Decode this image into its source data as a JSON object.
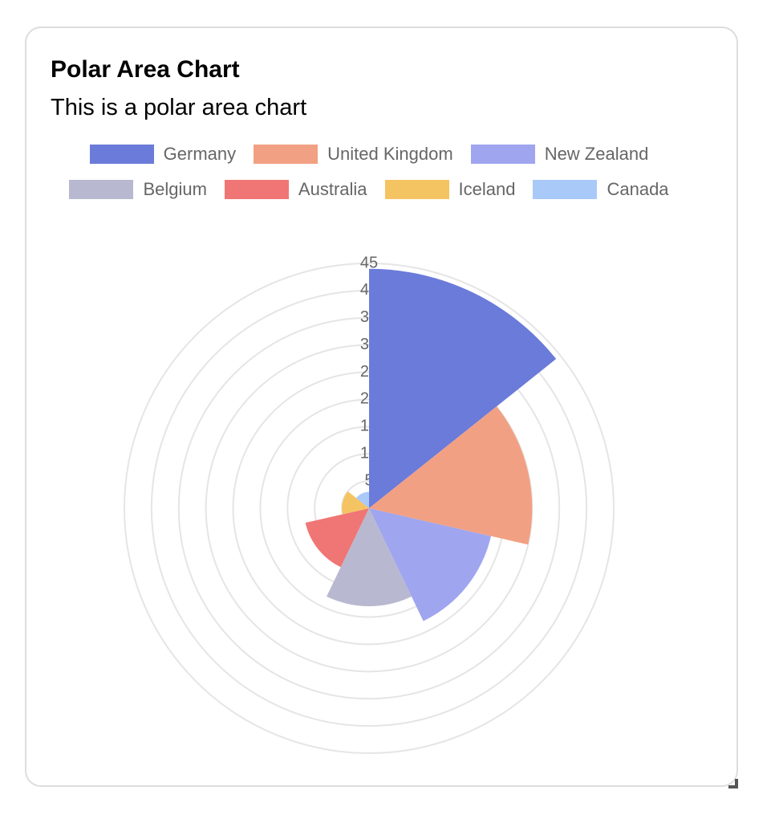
{
  "chart_data": {
    "type": "polarArea",
    "title": "Polar Area Chart",
    "subtitle": "This is a polar area chart",
    "categories": [
      "Germany",
      "United Kingdom",
      "New Zealand",
      "Belgium",
      "Australia",
      "Iceland",
      "Canada"
    ],
    "values": [
      44,
      30,
      23,
      18,
      12,
      5,
      3
    ],
    "colors": [
      "#6b7bd9",
      "#f2a083",
      "#9fa5ee",
      "#b8b9d0",
      "#ef7674",
      "#f5c462",
      "#a9c9f8"
    ],
    "ylim": [
      0,
      45
    ],
    "yticks": [
      5,
      10,
      15,
      20,
      25,
      30,
      35,
      40,
      45
    ],
    "grid": true,
    "legend": "top"
  }
}
